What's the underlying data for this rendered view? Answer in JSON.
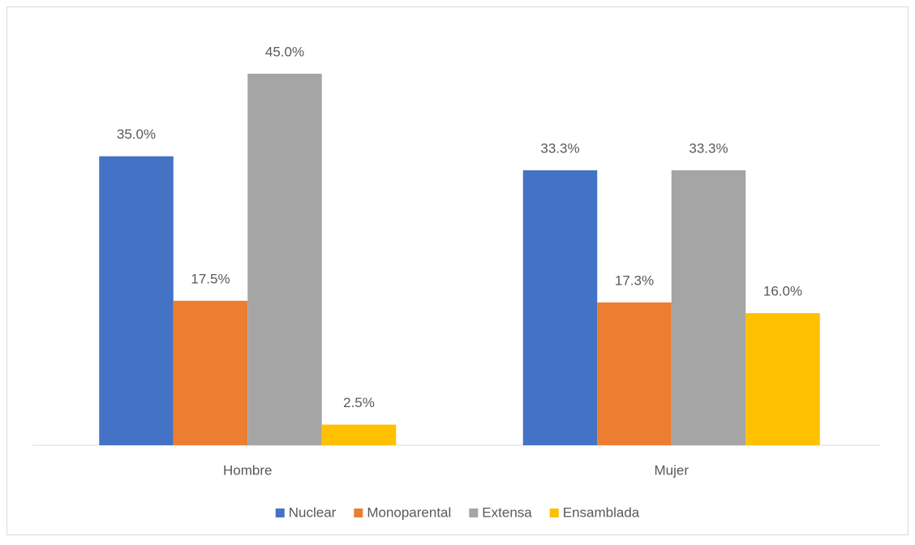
{
  "chart_data": {
    "type": "bar",
    "categories": [
      "Hombre",
      "Mujer"
    ],
    "series": [
      {
        "name": "Nuclear",
        "color": "#4472c4",
        "values": [
          35.0,
          33.3
        ],
        "value_labels": [
          "35.0%",
          "33.3%"
        ]
      },
      {
        "name": "Monoparental",
        "color": "#ed7d31",
        "values": [
          17.5,
          17.3
        ],
        "value_labels": [
          "17.5%",
          "17.3%"
        ]
      },
      {
        "name": "Extensa",
        "color": "#a5a5a5",
        "values": [
          45.0,
          33.3
        ],
        "value_labels": [
          "45.0%",
          "33.3%"
        ]
      },
      {
        "name": "Ensamblada",
        "color": "#ffc000",
        "values": [
          2.5,
          16.0
        ],
        "value_labels": [
          "2.5%",
          "16.0%"
        ]
      }
    ],
    "ylim": [
      0,
      50
    ],
    "legend": "bottom"
  }
}
